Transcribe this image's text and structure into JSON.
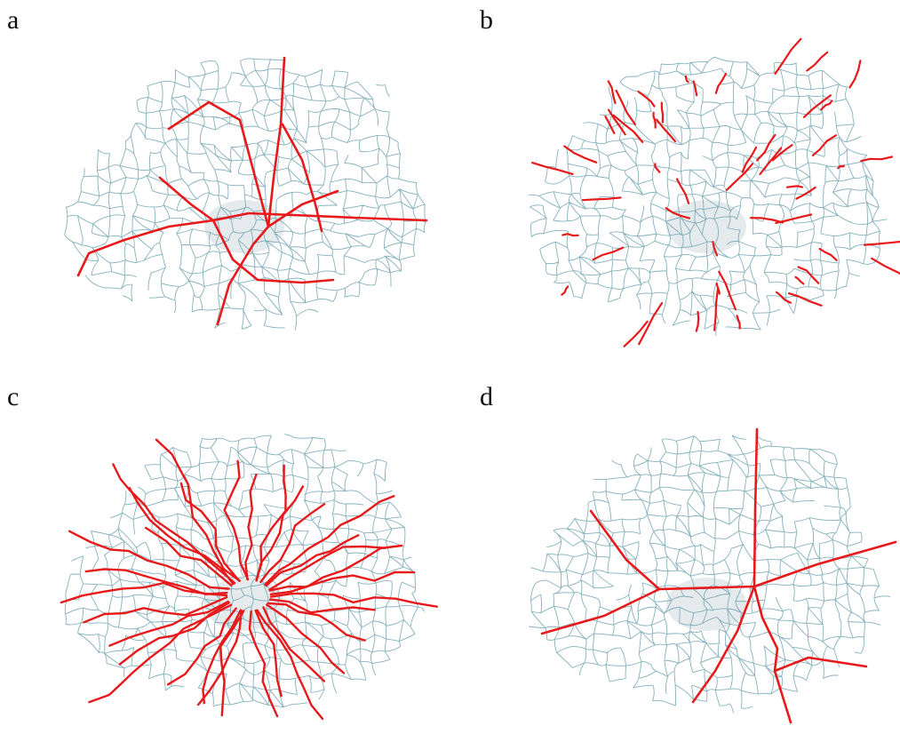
{
  "panels": [
    {
      "label": "a",
      "network_color": "#6fa3b0",
      "highlight_color": "#e8191b"
    },
    {
      "label": "b",
      "network_color": "#6fa3b0",
      "highlight_color": "#e8191b"
    },
    {
      "label": "c",
      "network_color": "#6fa3b0",
      "highlight_color": "#e8191b"
    },
    {
      "label": "d",
      "network_color": "#6fa3b0",
      "highlight_color": "#e8191b"
    }
  ],
  "center_shade_color": "#cfd8de"
}
